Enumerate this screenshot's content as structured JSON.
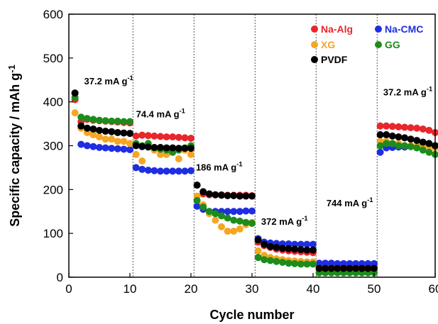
{
  "chart_data": {
    "type": "scatter",
    "title": "",
    "xlabel": "Cycle number",
    "ylabel": "Specific capacity / mAh g-1",
    "xlim": [
      0,
      60
    ],
    "ylim": [
      0,
      600
    ],
    "xticks": [
      0,
      10,
      20,
      30,
      40,
      50,
      60
    ],
    "yticks": [
      0,
      100,
      200,
      300,
      400,
      500,
      600
    ],
    "grid": false,
    "legend_position": "top-right",
    "rate_boundaries": [
      10.5,
      20.5,
      30.5,
      40.5,
      50.5
    ],
    "rate_labels": [
      {
        "text": "37.2 mA g-1",
        "x": 2.5,
        "y": 440
      },
      {
        "text": "74.4 mA g-1",
        "x": 11,
        "y": 365
      },
      {
        "text": "186 mA g-1",
        "x": 20.8,
        "y": 243
      },
      {
        "text": "372 mA g-1",
        "x": 31.5,
        "y": 120
      },
      {
        "text": "744 mA g-1",
        "x": 42.2,
        "y": 162
      },
      {
        "text": "37.2 mA g-1",
        "x": 51.5,
        "y": 415
      }
    ],
    "series": [
      {
        "name": "Na-Alg",
        "color": "#e8262b",
        "values": [
          405,
          355,
          360,
          358,
          357,
          356,
          355,
          354,
          353,
          352,
          322,
          324,
          323,
          322,
          321,
          320,
          320,
          319,
          318,
          317,
          210,
          190,
          188,
          188,
          188,
          187,
          187,
          187,
          187,
          186,
          80,
          72,
          68,
          64,
          62,
          60,
          59,
          58,
          57,
          56,
          25,
          24,
          24,
          24,
          23,
          23,
          23,
          23,
          23,
          23,
          345,
          345,
          344,
          343,
          342,
          341,
          340,
          338,
          335,
          330
        ]
      },
      {
        "name": "Na-CMC",
        "color": "#1e2ee0",
        "values": [
          420,
          303,
          300,
          298,
          296,
          295,
          294,
          293,
          292,
          291,
          250,
          246,
          244,
          243,
          242,
          242,
          242,
          242,
          242,
          243,
          162,
          155,
          150,
          150,
          150,
          150,
          150,
          150,
          151,
          151,
          88,
          80,
          78,
          77,
          76,
          76,
          75,
          75,
          75,
          75,
          32,
          32,
          32,
          31,
          31,
          31,
          31,
          31,
          31,
          31,
          285,
          295,
          296,
          297,
          297,
          298,
          299,
          299,
          299,
          300
        ]
      },
      {
        "name": "XG",
        "color": "#f5a623",
        "values": [
          375,
          340,
          330,
          325,
          320,
          315,
          315,
          310,
          310,
          305,
          280,
          265,
          300,
          290,
          280,
          280,
          285,
          270,
          290,
          280,
          185,
          165,
          145,
          130,
          115,
          105,
          105,
          110,
          120,
          125,
          60,
          50,
          45,
          42,
          40,
          38,
          37,
          36,
          35,
          35,
          15,
          15,
          14,
          14,
          14,
          14,
          14,
          14,
          14,
          14,
          310,
          310,
          305,
          305,
          300,
          300,
          300,
          298,
          298,
          295
        ]
      },
      {
        "name": "GG",
        "color": "#1c8c1c",
        "values": [
          410,
          365,
          362,
          360,
          358,
          357,
          356,
          356,
          355,
          355,
          305,
          300,
          305,
          295,
          292,
          290,
          285,
          290,
          295,
          300,
          175,
          160,
          150,
          145,
          140,
          135,
          130,
          128,
          125,
          123,
          45,
          40,
          38,
          36,
          34,
          32,
          31,
          30,
          30,
          30,
          10,
          10,
          10,
          10,
          10,
          10,
          10,
          10,
          10,
          10,
          300,
          305,
          305,
          300,
          300,
          298,
          295,
          290,
          285,
          280
        ]
      },
      {
        "name": "PVDF",
        "color": "#000000",
        "values": [
          420,
          345,
          340,
          338,
          335,
          333,
          332,
          330,
          329,
          328,
          300,
          298,
          297,
          296,
          296,
          295,
          295,
          294,
          294,
          294,
          210,
          195,
          190,
          188,
          187,
          186,
          186,
          185,
          185,
          185,
          85,
          75,
          70,
          68,
          66,
          65,
          64,
          63,
          62,
          62,
          20,
          20,
          20,
          20,
          20,
          20,
          20,
          20,
          20,
          20,
          325,
          325,
          322,
          320,
          318,
          315,
          312,
          308,
          305,
          300
        ]
      }
    ]
  }
}
